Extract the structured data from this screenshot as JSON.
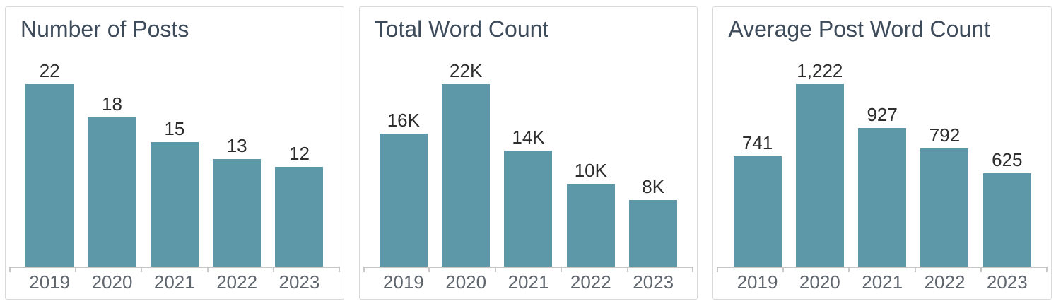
{
  "colors": {
    "bar": "#5c98a8",
    "title": "#3d4b5a",
    "value_label": "#2d2d2d",
    "axis_label": "#60666d",
    "axis_line": "#c7c7c7",
    "card_border": "#d9d9d9",
    "background": "#ffffff"
  },
  "chart_data": [
    {
      "type": "bar",
      "title": "Number of Posts",
      "categories": [
        "2019",
        "2020",
        "2021",
        "2022",
        "2023"
      ],
      "values": [
        22,
        18,
        15,
        13,
        12
      ],
      "value_labels": [
        "22",
        "18",
        "15",
        "13",
        "12"
      ],
      "xlabel": "",
      "ylabel": "",
      "ylim": [
        0,
        22
      ],
      "grid": false,
      "legend": false
    },
    {
      "type": "bar",
      "title": "Total Word Count",
      "categories": [
        "2019",
        "2020",
        "2021",
        "2022",
        "2023"
      ],
      "values": [
        16000,
        22000,
        14000,
        10000,
        8000
      ],
      "value_labels": [
        "16K",
        "22K",
        "14K",
        "10K",
        "8K"
      ],
      "xlabel": "",
      "ylabel": "",
      "ylim": [
        0,
        22000
      ],
      "grid": false,
      "legend": false
    },
    {
      "type": "bar",
      "title": "Average Post Word Count",
      "categories": [
        "2019",
        "2020",
        "2021",
        "2022",
        "2023"
      ],
      "values": [
        741,
        1222,
        927,
        792,
        625
      ],
      "value_labels": [
        "741",
        "1,222",
        "927",
        "792",
        "625"
      ],
      "xlabel": "",
      "ylabel": "",
      "ylim": [
        0,
        1222
      ],
      "grid": false,
      "legend": false
    }
  ]
}
